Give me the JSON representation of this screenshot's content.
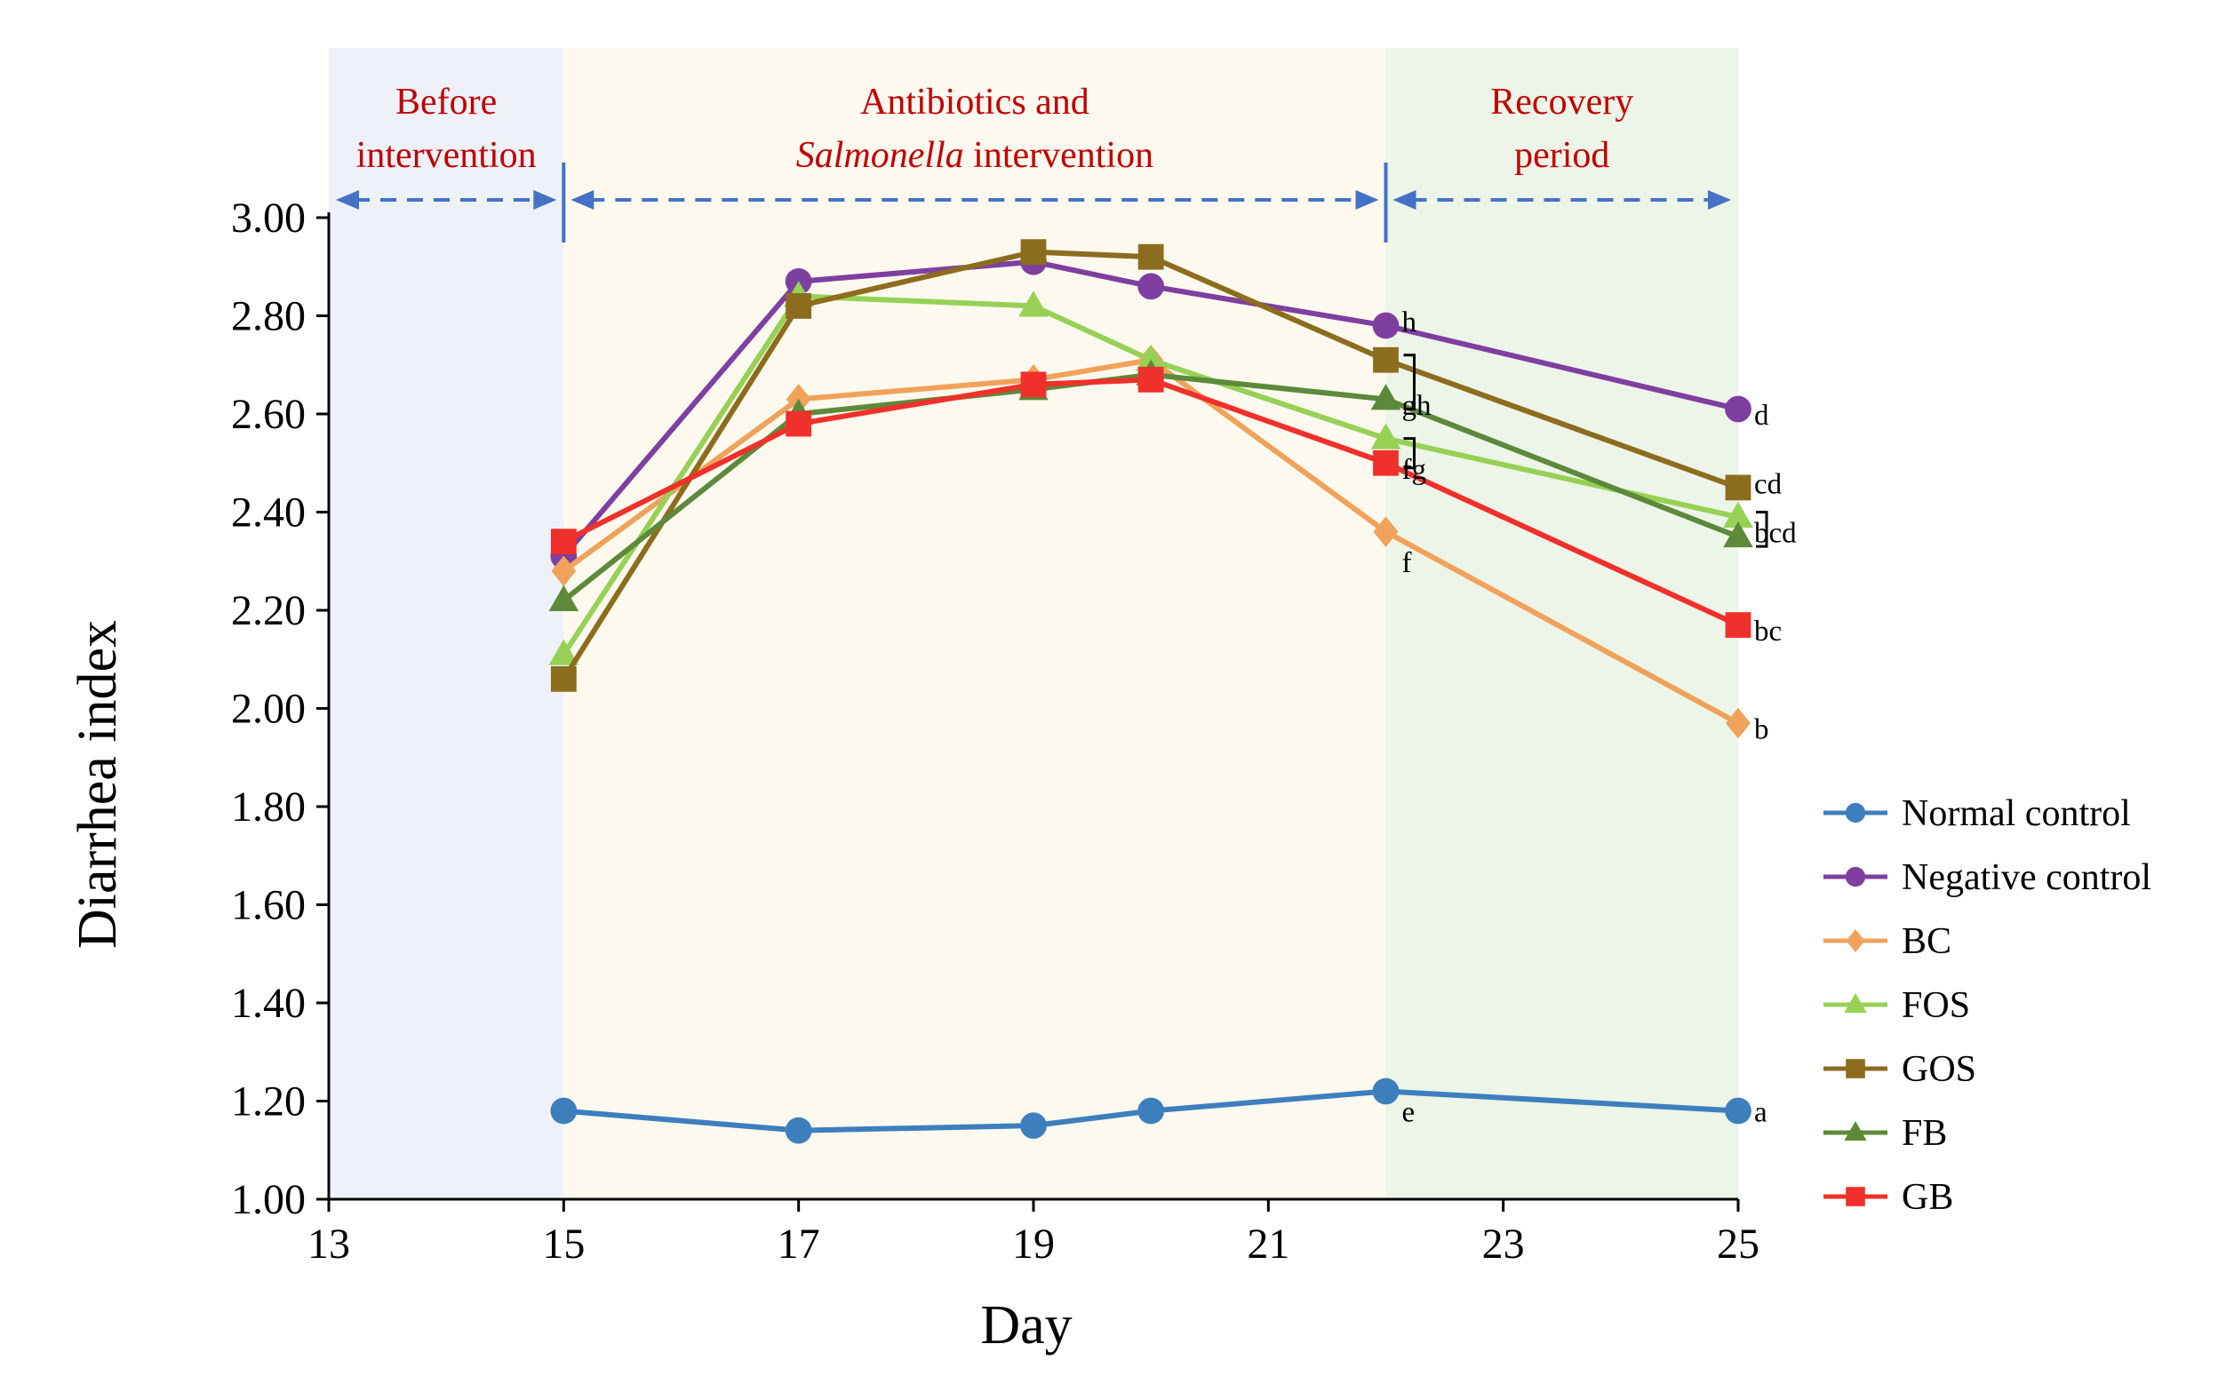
{
  "chart_data": {
    "type": "line",
    "title": "",
    "xlabel": "Day",
    "ylabel": "Diarrhea index",
    "xlim": [
      13,
      25
    ],
    "ylim": [
      1.0,
      3.0
    ],
    "xticks": [
      "13",
      "15",
      "17",
      "19",
      "21",
      "23",
      "25"
    ],
    "yticks": [
      "1.00",
      "1.20",
      "1.40",
      "1.60",
      "1.80",
      "2.00",
      "2.20",
      "2.40",
      "2.60",
      "2.80",
      "3.00"
    ],
    "x": [
      15,
      17,
      19,
      20,
      22,
      25
    ],
    "periods": [
      {
        "name": "before",
        "from": 13,
        "to": 15,
        "color": "#eef2f8",
        "label_lines": [
          "Before",
          "intervention"
        ]
      },
      {
        "name": "intervention",
        "from": 15,
        "to": 22,
        "color": "#fef9ee",
        "label_lines": [
          "Antibiotics and",
          "intervention"
        ],
        "label_italic": "Salmonella"
      },
      {
        "name": "recovery",
        "from": 22,
        "to": 25,
        "color": "#edf4e8",
        "label_lines": [
          "Recovery",
          "period"
        ]
      }
    ],
    "series": [
      {
        "name": "Normal control",
        "color": "#3d7fbd",
        "marker": "circle",
        "values": [
          1.18,
          1.14,
          1.15,
          1.18,
          1.22,
          1.18
        ]
      },
      {
        "name": "Negative control",
        "color": "#7f3fa0",
        "marker": "circle",
        "values": [
          2.31,
          2.87,
          2.91,
          2.86,
          2.78,
          2.61
        ]
      },
      {
        "name": "BC",
        "color": "#f0a25a",
        "marker": "diamond",
        "values": [
          2.28,
          2.63,
          2.67,
          2.71,
          2.36,
          1.97
        ]
      },
      {
        "name": "FOS",
        "color": "#96d155",
        "marker": "triangle",
        "values": [
          2.11,
          2.84,
          2.82,
          2.71,
          2.55,
          2.39
        ]
      },
      {
        "name": "GOS",
        "color": "#8c6d1e",
        "marker": "square",
        "values": [
          2.06,
          2.82,
          2.93,
          2.92,
          2.71,
          2.45
        ]
      },
      {
        "name": "FB",
        "color": "#5c8a3a",
        "marker": "triangle",
        "values": [
          2.22,
          2.6,
          2.65,
          2.68,
          2.63,
          2.35
        ]
      },
      {
        "name": "GB",
        "color": "#f0302a",
        "marker": "square",
        "values": [
          2.34,
          2.58,
          2.66,
          2.67,
          2.5,
          2.17
        ]
      }
    ],
    "annotations": [
      {
        "text": "h",
        "x": 22,
        "y": 2.79
      },
      {
        "text": "gh",
        "x": 22,
        "y": 2.62
      },
      {
        "text": "fg",
        "x": 22,
        "y": 2.49
      },
      {
        "text": "f",
        "x": 22,
        "y": 2.3
      },
      {
        "text": "e",
        "x": 22,
        "y": 1.18
      },
      {
        "text": "d",
        "x": 25,
        "y": 2.6
      },
      {
        "text": "cd",
        "x": 25,
        "y": 2.46
      },
      {
        "text": "bcd",
        "x": 25,
        "y": 2.36
      },
      {
        "text": "bc",
        "x": 25,
        "y": 2.16
      },
      {
        "text": "b",
        "x": 25,
        "y": 1.96
      },
      {
        "text": "a",
        "x": 25,
        "y": 1.18
      }
    ],
    "legend_position": "right"
  }
}
